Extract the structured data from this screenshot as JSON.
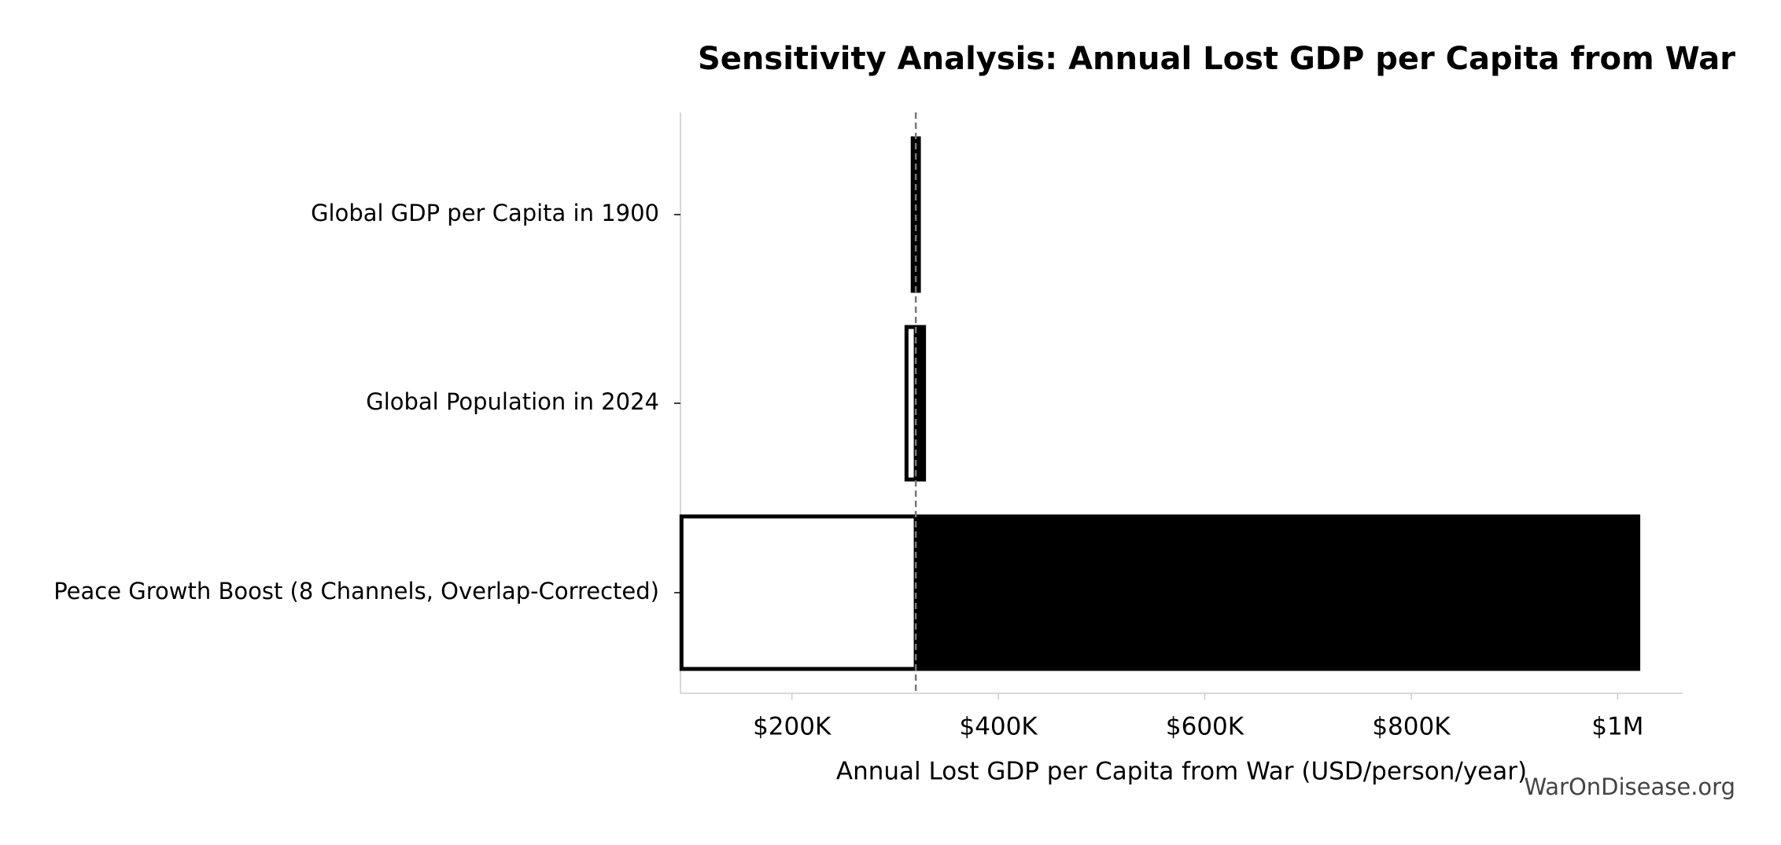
{
  "chart_data": {
    "type": "tornado",
    "title": "Sensitivity Analysis: Annual Lost GDP per Capita from War",
    "x_label": "Annual Lost GDP per Capita from War (USD/person/year)",
    "watermark": "WarOnDisease.org",
    "categories": [
      "Global GDP per Capita in 1900",
      "Global Population in 2024",
      "Peace Growth Boost (8 Channels, Overlap-Corrected)"
    ],
    "baseline": 320000,
    "series": [
      {
        "color": "#ffffff",
        "values": [
          317000,
          311000,
          93000
        ]
      },
      {
        "color": "#000000",
        "values": [
          323000,
          328000,
          1020000
        ]
      }
    ],
    "xlim": [
      92000,
      1063000
    ],
    "xticks": [
      {
        "value": 200000,
        "label": "$200K"
      },
      {
        "value": 400000,
        "label": "$400K"
      },
      {
        "value": 600000,
        "label": "$600K"
      },
      {
        "value": 800000,
        "label": "$800K"
      },
      {
        "value": 1000000,
        "label": "$1M"
      }
    ]
  }
}
